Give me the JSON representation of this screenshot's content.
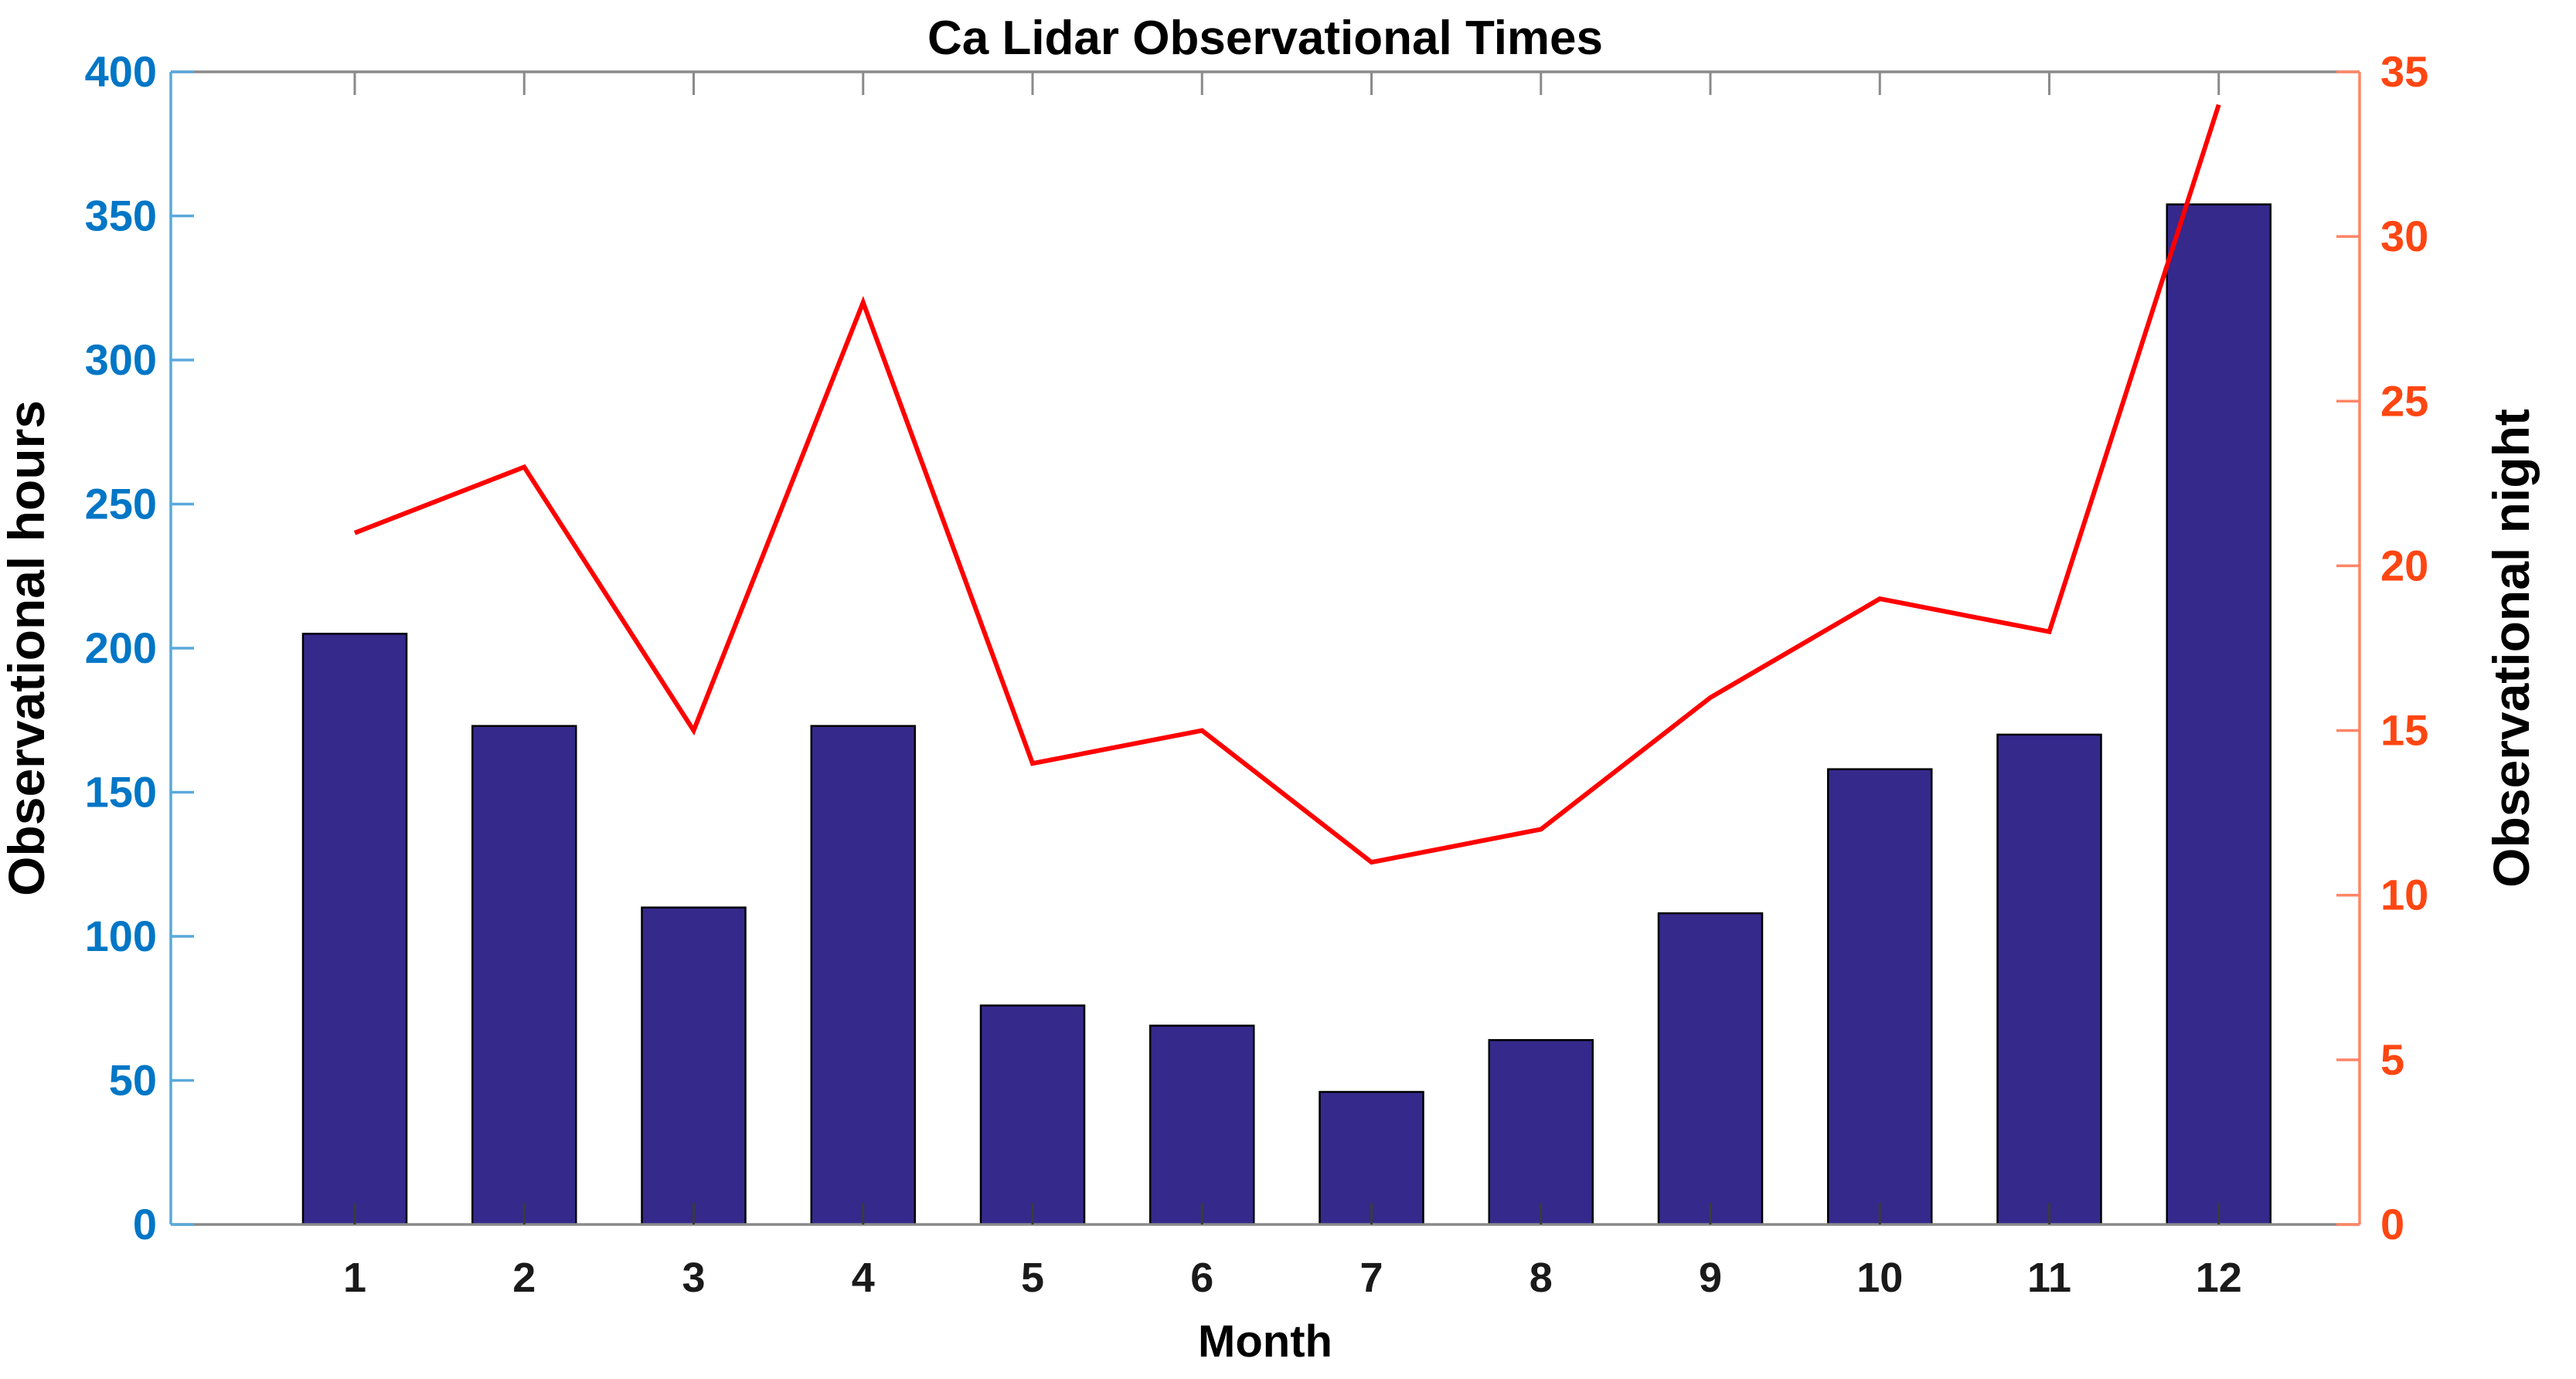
{
  "chart_data": {
    "type": "combo",
    "title": "Ca Lidar Observational Times",
    "xlabel": "Month",
    "left_ylabel": "Observational hours",
    "right_ylabel": "Observational night",
    "categories": [
      "1",
      "2",
      "3",
      "4",
      "5",
      "6",
      "7",
      "8",
      "9",
      "10",
      "11",
      "12"
    ],
    "series": [
      {
        "name": "Observational hours",
        "type": "bar",
        "axis": "left",
        "values": [
          205,
          173,
          110,
          173,
          76,
          69,
          46,
          64,
          108,
          158,
          170,
          354
        ]
      },
      {
        "name": "Observational night",
        "type": "line",
        "axis": "right",
        "values": [
          21,
          23,
          15,
          28,
          14,
          15,
          11,
          12,
          16,
          19,
          18,
          34
        ]
      }
    ],
    "left_ylim": [
      0,
      400
    ],
    "right_ylim": [
      0,
      35
    ],
    "left_ticks": [
      0,
      50,
      100,
      150,
      200,
      250,
      300,
      350,
      400
    ],
    "right_ticks": [
      0,
      5,
      10,
      15,
      20,
      25,
      30,
      35
    ],
    "grid": false,
    "legend": false
  },
  "colors": {
    "bar_fill": "#35298C",
    "bar_edge": "#000000",
    "line": "#FF0000",
    "left_label": "#0076C6",
    "left_axis_line": "#59A9DB",
    "right_label": "#FF4612",
    "right_axis_line": "#FF8566",
    "frame": "#8A8A8A",
    "x_tick": "#3B3B3B",
    "title_color": "#000000",
    "x_label_color": "#1A1A1A"
  }
}
